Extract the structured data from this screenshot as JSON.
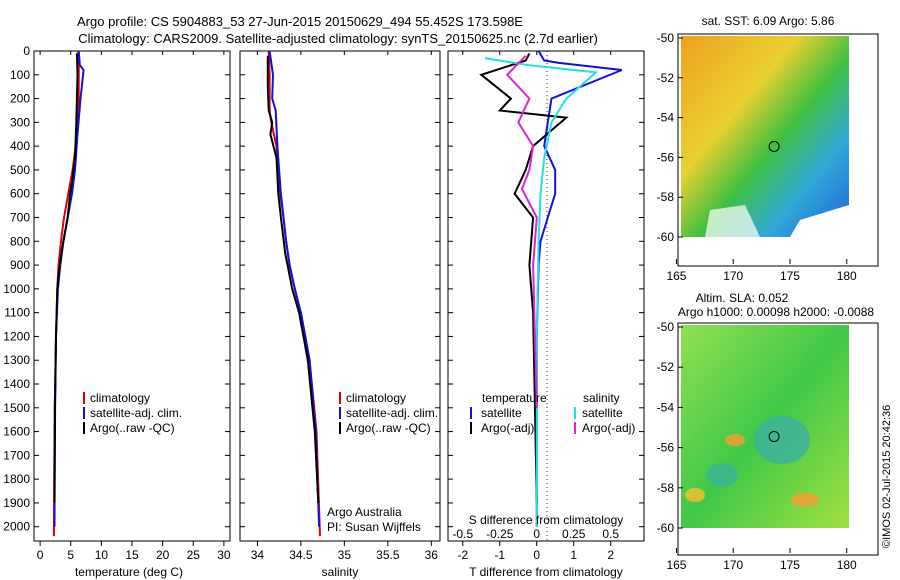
{
  "header": {
    "line1": "Argo profile: CS 5904883_53 27-Jun-2015 20150629_494 55.452S 173.598E",
    "line2": "Climatology: CARS2009. Satellite-adjusted climatology: synTS_20150625.nc (2.7d earlier)"
  },
  "colors": {
    "climatology": "#e00000",
    "satellite": "#1010e0",
    "argo": "#000000",
    "sat_salinity": "#20e0e0",
    "argo_salinity_adj": "#e020e0"
  },
  "chart_data": [
    {
      "id": "temperature",
      "type": "line",
      "xlabel": "temperature (deg C)",
      "ylabel": "",
      "xlim": [
        -1,
        31
      ],
      "ylim": [
        2060,
        0
      ],
      "xticks": [
        "0",
        "5",
        "10",
        "15",
        "20",
        "25",
        "30"
      ],
      "yticks": [
        "0",
        "100",
        "200",
        "300",
        "400",
        "500",
        "600",
        "700",
        "800",
        "900",
        "1000",
        "1100",
        "1200",
        "1300",
        "1400",
        "1500",
        "1600",
        "1700",
        "1800",
        "1900",
        "2000"
      ],
      "legend": [
        "climatology",
        "satellite-adj. clim.",
        "Argo(..raw -QC)"
      ],
      "series": [
        {
          "name": "climatology",
          "color": "#e00000",
          "x": [
            6.2,
            6.3,
            6.3,
            6.0,
            5.8,
            5.3,
            4.6,
            3.9,
            3.4,
            3.0,
            2.8,
            2.6,
            2.4,
            2.3,
            2.25
          ],
          "y": [
            0,
            50,
            200,
            300,
            400,
            500,
            600,
            700,
            800,
            900,
            1000,
            1200,
            1500,
            1800,
            2040
          ]
        },
        {
          "name": "satellite-adj. clim.",
          "color": "#1010e0",
          "x": [
            6.3,
            6.5,
            7.1,
            6.6,
            6.1,
            5.7,
            5.2,
            4.5,
            3.8,
            3.3,
            2.9,
            2.6,
            2.4,
            2.35
          ],
          "y": [
            0,
            60,
            80,
            200,
            350,
            500,
            600,
            700,
            800,
            900,
            1000,
            1200,
            1500,
            2000
          ]
        },
        {
          "name": "Argo(..raw -QC)",
          "color": "#000000",
          "x": [
            6.0,
            6.1,
            5.9,
            5.7,
            5.2,
            4.9,
            4.5,
            3.8,
            3.2,
            2.8,
            2.6,
            2.45,
            2.35
          ],
          "y": [
            10,
            100,
            300,
            450,
            550,
            600,
            700,
            800,
            900,
            1000,
            1200,
            1500,
            1900
          ]
        }
      ]
    },
    {
      "id": "salinity",
      "type": "line",
      "xlabel": "salinity",
      "ylabel": "",
      "xlim": [
        33.8,
        36.1
      ],
      "ylim": [
        2060,
        0
      ],
      "xticks": [
        "34",
        "34.5",
        "35",
        "35.5",
        "36"
      ],
      "legend": [
        "climatology",
        "satellite-adj. clim.",
        "Argo(..raw -QC)"
      ],
      "annotation_lines": [
        "Argo Australia",
        "PI: Susan Wijffels"
      ],
      "series": [
        {
          "name": "climatology",
          "color": "#e00000",
          "x": [
            34.13,
            34.14,
            34.14,
            34.16,
            34.22,
            34.23,
            34.27,
            34.3,
            34.33,
            34.37,
            34.43,
            34.5,
            34.6,
            34.68,
            34.72
          ],
          "y": [
            0,
            100,
            250,
            300,
            400,
            500,
            620,
            700,
            800,
            900,
            1000,
            1100,
            1300,
            1600,
            2040
          ]
        },
        {
          "name": "satellite-adj. clim.",
          "color": "#1010e0",
          "x": [
            34.14,
            34.18,
            34.17,
            34.21,
            34.23,
            34.25,
            34.27,
            34.3,
            34.33,
            34.37,
            34.43,
            34.5,
            34.6,
            34.67,
            34.71
          ],
          "y": [
            0,
            100,
            200,
            250,
            400,
            500,
            600,
            700,
            800,
            900,
            1000,
            1100,
            1300,
            1600,
            2000
          ]
        },
        {
          "name": "Argo(..raw -QC)",
          "color": "#000000",
          "x": [
            34.12,
            34.12,
            34.13,
            34.17,
            34.15,
            34.22,
            34.24,
            34.27,
            34.32,
            34.4,
            34.48,
            34.58,
            34.66,
            34.7
          ],
          "y": [
            20,
            150,
            250,
            300,
            350,
            450,
            600,
            700,
            850,
            1000,
            1100,
            1300,
            1600,
            1900
          ]
        }
      ]
    },
    {
      "id": "difference",
      "type": "line",
      "xlabel": "T difference from climatology",
      "xlabel_top": "S difference from climatology",
      "xlim": [
        -2.4,
        2.9
      ],
      "ylim": [
        2060,
        0
      ],
      "xticks": [
        "-2",
        "-1",
        "0",
        "1",
        "2"
      ],
      "xticks_top": [
        "-0.5",
        "-0.25",
        "0",
        "0.25",
        "0.5"
      ],
      "legend_headers": [
        "temperature",
        "salinity"
      ],
      "legend": [
        "satellite",
        "Argo(-adj)",
        "satellite",
        "Argo(-adj)"
      ],
      "series": [
        {
          "name": "temperature satellite",
          "color": "#1010e0",
          "x": [
            0.05,
            0.2,
            0.6,
            2.3,
            0.4,
            0.3,
            0.2,
            0.5,
            0.5,
            0.3,
            0.1,
            0.05,
            0.0,
            0.0
          ],
          "y": [
            0,
            40,
            50,
            80,
            200,
            300,
            400,
            500,
            600,
            700,
            800,
            900,
            1200,
            2000
          ]
        },
        {
          "name": "temperature Argo(-adj)",
          "color": "#000000",
          "x": [
            -0.2,
            -0.3,
            -1.5,
            -0.7,
            -1.0,
            0.8,
            -0.1,
            -0.3,
            -0.6,
            -0.1,
            -0.2,
            -0.1,
            0.0
          ],
          "y": [
            10,
            40,
            100,
            200,
            250,
            280,
            400,
            500,
            600,
            700,
            900,
            1100,
            1900
          ]
        },
        {
          "name": "salinity satellite",
          "color": "#20e0e0",
          "x": [
            -1.4,
            -0.2,
            1.6,
            0.8,
            0.4,
            0.2,
            0.1,
            0.05,
            0.0,
            0.0
          ],
          "y": [
            30,
            60,
            90,
            200,
            300,
            450,
            600,
            800,
            1200,
            2000
          ]
        },
        {
          "name": "salinity Argo(-adj)",
          "color": "#e020e0",
          "x": [
            -0.3,
            -0.8,
            -0.2,
            -0.5,
            -0.1,
            -0.2,
            -0.4,
            0.0,
            -0.1,
            0.0
          ],
          "y": [
            20,
            100,
            200,
            300,
            400,
            500,
            580,
            700,
            900,
            1500
          ]
        }
      ]
    },
    {
      "id": "sst_map",
      "type": "heatmap",
      "title": "sat. SST: 6.09 Argo: 5.86",
      "xlim": [
        164.5,
        182.5
      ],
      "ylim": [
        -60.3,
        -49.8
      ],
      "xticks": [
        "165",
        "170",
        "175",
        "180"
      ],
      "yticks": [
        "-50",
        "-52",
        "-54",
        "-56",
        "-58",
        "-60"
      ],
      "marker": {
        "lon": 173.6,
        "lat": -55.45
      }
    },
    {
      "id": "sla_map",
      "type": "heatmap",
      "title_lines": [
        "Altim. SLA: 0.052",
        "Argo h1000: 0.00098 h2000: -0.0088"
      ],
      "xlim": [
        164.5,
        182.5
      ],
      "ylim": [
        -60.3,
        -49.8
      ],
      "xticks": [
        "165",
        "170",
        "175",
        "180"
      ],
      "yticks": [
        "-50",
        "-52",
        "-54",
        "-56",
        "-58",
        "-60"
      ],
      "marker": {
        "lon": 173.6,
        "lat": -55.45
      }
    }
  ],
  "footer": {
    "credit": "©IMOS 02-Jul-2015 20:42:36"
  }
}
